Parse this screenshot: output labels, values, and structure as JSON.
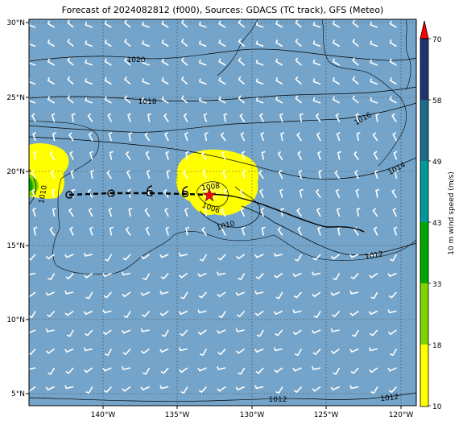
{
  "title": "Forecast of 2024082812 (f000), Sources: GDACS (TC track), GFS (Meteo)",
  "colors": {
    "ocean": "#74a4c9",
    "land_fill": "#74a4c9",
    "wind_barb": "#ffffff",
    "track_forecast": "#000000",
    "track_past": "#000000",
    "storm_center": "#ff0000",
    "contour": "#000000",
    "gridline": "#333333"
  },
  "axes": {
    "lat_labels": [
      "30°N",
      "25°N",
      "20°N",
      "15°N",
      "10°N",
      "5°N"
    ],
    "lon_labels": [
      "140°W",
      "135°W",
      "130°W",
      "125°W",
      "120°W"
    ]
  },
  "pressure_labels": [
    "1020",
    "1018",
    "1016",
    "1014",
    "1012",
    "1012",
    "1012",
    "1012",
    "1010",
    "1010",
    "1008",
    "1006"
  ],
  "colorbar": {
    "label": "10 m wind speed (m/s)",
    "ticks": [
      "10",
      "18",
      "33",
      "43",
      "49",
      "58",
      "70"
    ],
    "colors": [
      "#ffff00",
      "#7fd400",
      "#00a800",
      "#009999",
      "#1f6a8a",
      "#1f3370",
      "#ff0000"
    ]
  },
  "icons": [
    "storm-center-star-icon",
    "tropical-cyclone-symbol-icon",
    "low-pressure-circle-icon"
  ]
}
